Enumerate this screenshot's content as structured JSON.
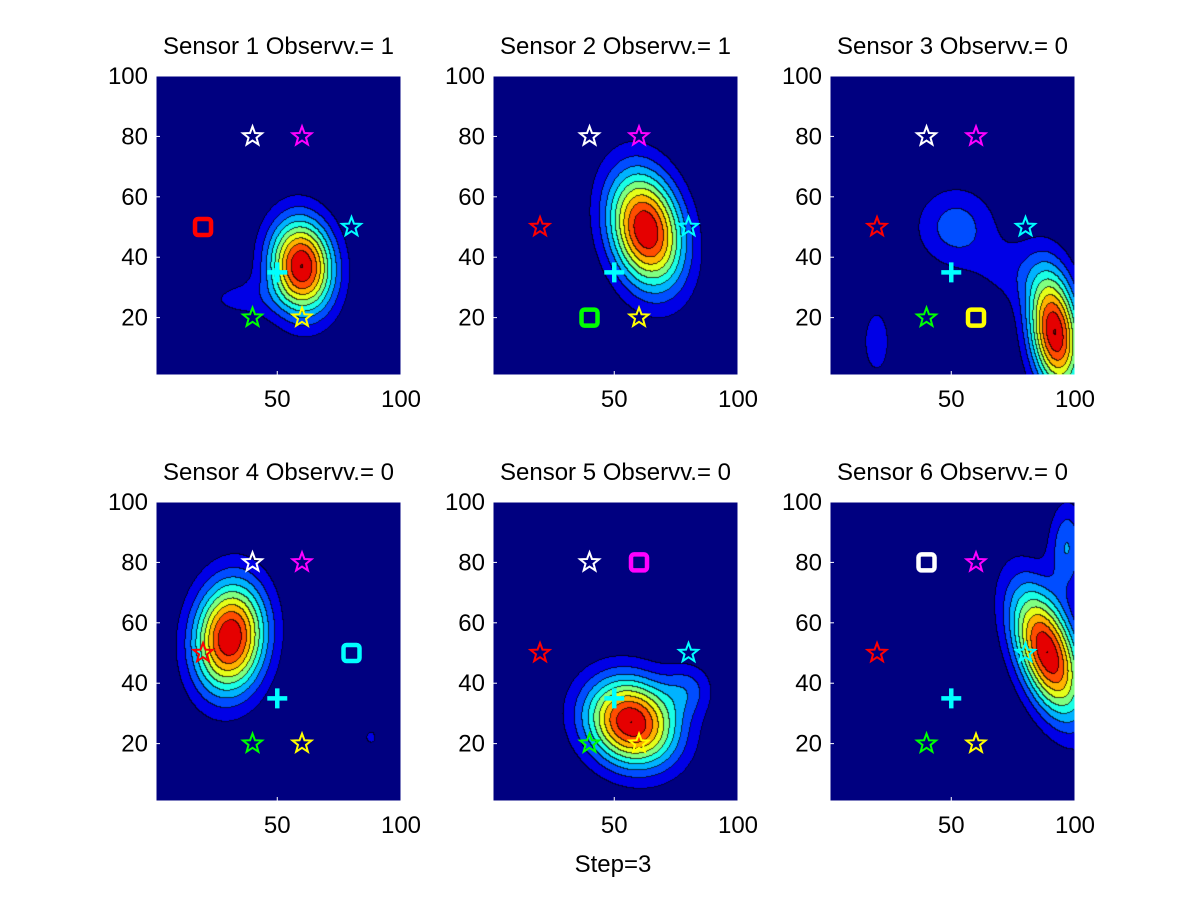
{
  "figure": {
    "xlabel": "Step=3",
    "colors": {
      "background": "#00008F",
      "frame": "#ffffff"
    }
  },
  "chart_data": [
    {
      "type": "heatmap",
      "title": "Sensor 1 Observv.= 1",
      "xlim": [
        1,
        100
      ],
      "ylim": [
        1,
        100
      ],
      "xticks": [
        50,
        100
      ],
      "yticks": [
        20,
        40,
        60,
        80,
        100
      ],
      "grid": false,
      "density": [
        {
          "x": 60,
          "y": 37,
          "sx": 9,
          "sy": 11,
          "a": 1.0,
          "rot": 10
        },
        {
          "x": 35,
          "y": 26,
          "sx": 12,
          "sy": 5,
          "a": 0.12,
          "rot": 0
        }
      ],
      "markers": [
        {
          "type": "star",
          "x": 40,
          "y": 80,
          "color": "#ffffff"
        },
        {
          "type": "star",
          "x": 60,
          "y": 80,
          "color": "#ff00ff"
        },
        {
          "type": "star",
          "x": 80,
          "y": 50,
          "color": "#00ffff"
        },
        {
          "type": "star",
          "x": 40,
          "y": 20,
          "color": "#00ff00"
        },
        {
          "type": "star",
          "x": 60,
          "y": 20,
          "color": "#ffff00"
        },
        {
          "type": "square",
          "x": 20,
          "y": 50,
          "color": "#ff0000"
        },
        {
          "type": "plus",
          "x": 50,
          "y": 35,
          "color": "#00ffff"
        }
      ]
    },
    {
      "type": "heatmap",
      "title": "Sensor 2 Observv.= 1",
      "xlim": [
        1,
        100
      ],
      "ylim": [
        1,
        100
      ],
      "xticks": [
        50,
        100
      ],
      "yticks": [
        20,
        40,
        60,
        80,
        100
      ],
      "grid": false,
      "density": [
        {
          "x": 63,
          "y": 49,
          "sx": 10,
          "sy": 14,
          "a": 1.0,
          "rot": 20
        }
      ],
      "markers": [
        {
          "type": "star",
          "x": 40,
          "y": 80,
          "color": "#ffffff"
        },
        {
          "type": "star",
          "x": 60,
          "y": 80,
          "color": "#ff00ff"
        },
        {
          "type": "star",
          "x": 20,
          "y": 50,
          "color": "#ff0000"
        },
        {
          "type": "star",
          "x": 80,
          "y": 50,
          "color": "#00ffff"
        },
        {
          "type": "star",
          "x": 60,
          "y": 20,
          "color": "#ffff00"
        },
        {
          "type": "square",
          "x": 40,
          "y": 20,
          "color": "#00ff00"
        },
        {
          "type": "plus",
          "x": 50,
          "y": 35,
          "color": "#00ffff"
        }
      ]
    },
    {
      "type": "heatmap",
      "title": "Sensor 3 Observv.= 0",
      "xlim": [
        1,
        100
      ],
      "ylim": [
        1,
        100
      ],
      "xticks": [
        50,
        100
      ],
      "yticks": [
        20,
        40,
        60,
        80,
        100
      ],
      "grid": false,
      "density": [
        {
          "x": 92,
          "y": 15,
          "sx": 7,
          "sy": 14,
          "a": 1.0,
          "rot": 10
        },
        {
          "x": 52,
          "y": 50,
          "sx": 11,
          "sy": 9,
          "a": 0.25,
          "rot": 0
        },
        {
          "x": 20,
          "y": 12,
          "sx": 6,
          "sy": 12,
          "a": 0.13,
          "rot": 0
        },
        {
          "x": 75,
          "y": 35,
          "sx": 12,
          "sy": 8,
          "a": 0.12,
          "rot": 0
        }
      ],
      "markers": [
        {
          "type": "star",
          "x": 40,
          "y": 80,
          "color": "#ffffff"
        },
        {
          "type": "star",
          "x": 60,
          "y": 80,
          "color": "#ff00ff"
        },
        {
          "type": "star",
          "x": 20,
          "y": 50,
          "color": "#ff0000"
        },
        {
          "type": "star",
          "x": 80,
          "y": 50,
          "color": "#00ffff"
        },
        {
          "type": "star",
          "x": 40,
          "y": 20,
          "color": "#00ff00"
        },
        {
          "type": "square",
          "x": 60,
          "y": 20,
          "color": "#ffff00"
        },
        {
          "type": "plus",
          "x": 50,
          "y": 35,
          "color": "#00ffff"
        }
      ]
    },
    {
      "type": "heatmap",
      "title": "Sensor 4 Observv.= 0",
      "xlim": [
        1,
        100
      ],
      "ylim": [
        1,
        100
      ],
      "xticks": [
        50,
        100
      ],
      "yticks": [
        20,
        40,
        60,
        80,
        100
      ],
      "grid": false,
      "density": [
        {
          "x": 31,
          "y": 55,
          "sx": 10,
          "sy": 13,
          "a": 1.0,
          "rot": -10
        },
        {
          "x": 88,
          "y": 22,
          "sx": 2,
          "sy": 2,
          "a": 0.14,
          "rot": 0
        }
      ],
      "markers": [
        {
          "type": "star",
          "x": 40,
          "y": 80,
          "color": "#ffffff"
        },
        {
          "type": "star",
          "x": 60,
          "y": 80,
          "color": "#ff00ff"
        },
        {
          "type": "star",
          "x": 20,
          "y": 50,
          "color": "#ff0000"
        },
        {
          "type": "star",
          "x": 40,
          "y": 20,
          "color": "#00ff00"
        },
        {
          "type": "star",
          "x": 60,
          "y": 20,
          "color": "#ffff00"
        },
        {
          "type": "square",
          "x": 80,
          "y": 50,
          "color": "#00ffff"
        },
        {
          "type": "plus",
          "x": 50,
          "y": 35,
          "color": "#00ffff"
        }
      ]
    },
    {
      "type": "heatmap",
      "title": "Sensor 5 Observv.= 0",
      "xlim": [
        1,
        100
      ],
      "ylim": [
        1,
        100
      ],
      "xticks": [
        50,
        100
      ],
      "yticks": [
        20,
        40,
        60,
        80,
        100
      ],
      "grid": false,
      "density": [
        {
          "x": 57,
          "y": 27,
          "sx": 13,
          "sy": 10,
          "a": 1.0,
          "rot": -15
        },
        {
          "x": 80,
          "y": 38,
          "sx": 7,
          "sy": 6,
          "a": 0.2,
          "rot": 0
        }
      ],
      "markers": [
        {
          "type": "star",
          "x": 40,
          "y": 80,
          "color": "#ffffff"
        },
        {
          "type": "star",
          "x": 20,
          "y": 50,
          "color": "#ff0000"
        },
        {
          "type": "star",
          "x": 80,
          "y": 50,
          "color": "#00ffff"
        },
        {
          "type": "star",
          "x": 40,
          "y": 20,
          "color": "#00ff00"
        },
        {
          "type": "star",
          "x": 60,
          "y": 20,
          "color": "#ffff00"
        },
        {
          "type": "square",
          "x": 60,
          "y": 80,
          "color": "#ff00ff"
        },
        {
          "type": "plus",
          "x": 50,
          "y": 35,
          "color": "#00ffff"
        }
      ]
    },
    {
      "type": "heatmap",
      "title": "Sensor 6 Observv.= 0",
      "xlim": [
        1,
        100
      ],
      "ylim": [
        1,
        100
      ],
      "xticks": [
        50,
        100
      ],
      "yticks": [
        20,
        40,
        60,
        80,
        100
      ],
      "grid": false,
      "density": [
        {
          "x": 89,
          "y": 50,
          "sx": 8,
          "sy": 16,
          "a": 1.0,
          "rot": 25
        },
        {
          "x": 97,
          "y": 85,
          "sx": 5,
          "sy": 10,
          "a": 0.3,
          "rot": 0
        }
      ],
      "markers": [
        {
          "type": "star",
          "x": 60,
          "y": 80,
          "color": "#ff00ff"
        },
        {
          "type": "star",
          "x": 20,
          "y": 50,
          "color": "#ff0000"
        },
        {
          "type": "star",
          "x": 80,
          "y": 50,
          "color": "#00ffff"
        },
        {
          "type": "star",
          "x": 40,
          "y": 20,
          "color": "#00ff00"
        },
        {
          "type": "star",
          "x": 60,
          "y": 20,
          "color": "#ffff00"
        },
        {
          "type": "square",
          "x": 40,
          "y": 80,
          "color": "#ffffff"
        },
        {
          "type": "plus",
          "x": 50,
          "y": 35,
          "color": "#00ffff"
        }
      ]
    }
  ]
}
